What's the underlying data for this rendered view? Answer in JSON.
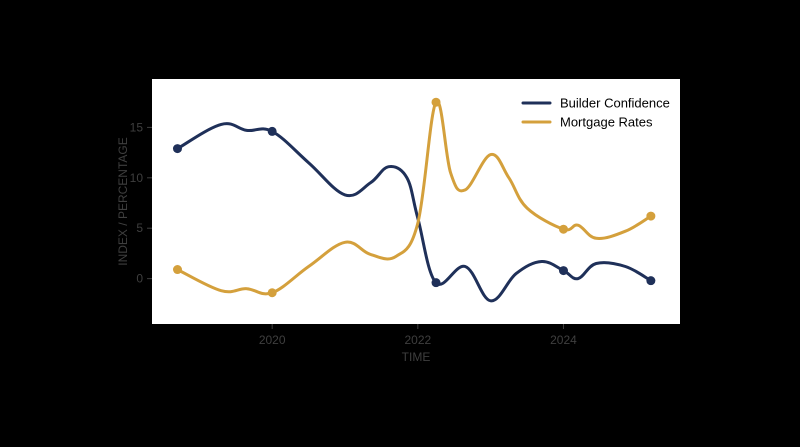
{
  "chart_data": {
    "type": "line",
    "title": "",
    "xlabel": "TIME",
    "ylabel": "INDEX / PERCENTAGE",
    "xlim": [
      2018.35,
      2025.6
    ],
    "ylim": [
      -4.5,
      19.8
    ],
    "x_ticks": [
      2020,
      2022,
      2024
    ],
    "y_ticks": [
      0,
      5,
      10,
      15
    ],
    "grid": false,
    "legend_position": "top-right",
    "colors": {
      "background": "#000000",
      "plot_bg": "#ffffff",
      "text": "#3f3f3f"
    },
    "series": [
      {
        "name": "Builder Confidence",
        "color": "#1f3059",
        "points": [
          {
            "x": 2018.7,
            "y": 12.9
          },
          {
            "x": 2020.0,
            "y": 14.6
          },
          {
            "x": 2022.25,
            "y": -0.4
          },
          {
            "x": 2024.0,
            "y": 0.8
          },
          {
            "x": 2025.2,
            "y": -0.2
          }
        ],
        "curve": [
          [
            2018.7,
            12.9
          ],
          [
            2019.3,
            15.3
          ],
          [
            2019.65,
            14.7
          ],
          [
            2020.0,
            14.6
          ],
          [
            2020.5,
            11.5
          ],
          [
            2021.0,
            8.3
          ],
          [
            2021.35,
            9.5
          ],
          [
            2021.6,
            11.1
          ],
          [
            2021.85,
            10.0
          ],
          [
            2022.0,
            6.0
          ],
          [
            2022.25,
            -0.4
          ],
          [
            2022.65,
            1.2
          ],
          [
            2023.0,
            -2.2
          ],
          [
            2023.35,
            0.5
          ],
          [
            2023.7,
            1.7
          ],
          [
            2024.0,
            0.8
          ],
          [
            2024.2,
            0.0
          ],
          [
            2024.45,
            1.5
          ],
          [
            2024.85,
            1.2
          ],
          [
            2025.2,
            -0.2
          ]
        ]
      },
      {
        "name": "Mortgage Rates",
        "color": "#d4a03c",
        "points": [
          {
            "x": 2018.7,
            "y": 0.9
          },
          {
            "x": 2020.0,
            "y": -1.4
          },
          {
            "x": 2022.25,
            "y": 17.5
          },
          {
            "x": 2024.0,
            "y": 4.9
          },
          {
            "x": 2025.2,
            "y": 6.2
          }
        ],
        "curve": [
          [
            2018.7,
            0.9
          ],
          [
            2019.3,
            -1.2
          ],
          [
            2019.65,
            -1.0
          ],
          [
            2020.0,
            -1.4
          ],
          [
            2020.5,
            1.2
          ],
          [
            2021.0,
            3.6
          ],
          [
            2021.35,
            2.4
          ],
          [
            2021.7,
            2.2
          ],
          [
            2022.0,
            5.5
          ],
          [
            2022.25,
            17.5
          ],
          [
            2022.45,
            10.5
          ],
          [
            2022.65,
            8.8
          ],
          [
            2023.0,
            12.3
          ],
          [
            2023.25,
            10.0
          ],
          [
            2023.5,
            7.0
          ],
          [
            2024.0,
            4.9
          ],
          [
            2024.2,
            5.3
          ],
          [
            2024.45,
            4.0
          ],
          [
            2024.85,
            4.7
          ],
          [
            2025.2,
            6.2
          ]
        ]
      }
    ]
  }
}
